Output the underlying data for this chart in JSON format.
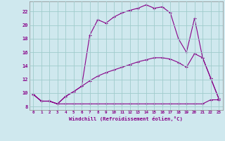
{
  "xlabel": "Windchill (Refroidissement éolien,°C)",
  "background_color": "#cfe8ee",
  "grid_color": "#a0cccc",
  "line_color": "#880088",
  "x_ticks": [
    0,
    1,
    2,
    3,
    4,
    5,
    6,
    7,
    8,
    9,
    10,
    11,
    12,
    13,
    14,
    15,
    16,
    17,
    18,
    19,
    20,
    21,
    22,
    23
  ],
  "yticks": [
    8,
    10,
    12,
    14,
    16,
    18,
    20,
    22
  ],
  "xlim": [
    -0.5,
    23.5
  ],
  "ylim": [
    7.5,
    23.5
  ],
  "line1_x": [
    0,
    1,
    2,
    3,
    4,
    5,
    6,
    7,
    8,
    9,
    10,
    11,
    12,
    13,
    14,
    15,
    16,
    17,
    18,
    19,
    20,
    21,
    22,
    23
  ],
  "line1_y": [
    9.8,
    8.8,
    8.8,
    8.4,
    8.4,
    8.4,
    8.4,
    8.4,
    8.4,
    8.4,
    8.4,
    8.4,
    8.4,
    8.4,
    8.4,
    8.4,
    8.4,
    8.4,
    8.4,
    8.4,
    8.4,
    8.4,
    9.0,
    9.0
  ],
  "line2_x": [
    0,
    1,
    2,
    3,
    4,
    5,
    6,
    7,
    8,
    9,
    10,
    11,
    12,
    13,
    14,
    15,
    16,
    17,
    18,
    19,
    20,
    21,
    22,
    23
  ],
  "line2_y": [
    9.8,
    8.8,
    8.8,
    8.4,
    9.5,
    10.2,
    11.0,
    11.8,
    12.5,
    13.0,
    13.4,
    13.8,
    14.2,
    14.6,
    14.9,
    15.2,
    15.2,
    15.0,
    14.5,
    13.8,
    15.8,
    15.2,
    12.2,
    9.2
  ],
  "line3_x": [
    0,
    1,
    2,
    3,
    4,
    5,
    6,
    7,
    8,
    9,
    10,
    11,
    12,
    13,
    14,
    15,
    16,
    17,
    18,
    19,
    20,
    21,
    22,
    23
  ],
  "line3_y": [
    9.8,
    8.8,
    8.8,
    8.4,
    9.5,
    10.2,
    11.0,
    18.5,
    20.8,
    20.3,
    21.2,
    21.8,
    22.2,
    22.5,
    23.0,
    22.5,
    22.7,
    21.8,
    18.0,
    16.0,
    21.0,
    15.2,
    12.2,
    9.2
  ]
}
